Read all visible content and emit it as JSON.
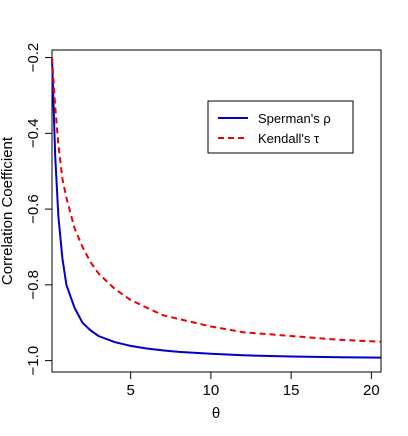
{
  "chart_data": {
    "type": "line",
    "xlabel": "θ",
    "ylabel": "Correlation Coefficient",
    "xlim": [
      0.1,
      20.6
    ],
    "ylim": [
      -1.03,
      -0.18
    ],
    "xticks": [
      5,
      10,
      15,
      20
    ],
    "yticks": [
      -1.0,
      -0.8,
      -0.6,
      -0.4,
      -0.2
    ],
    "ytick_labels": [
      "−1.0",
      "−0.8",
      "−0.6",
      "−0.4",
      "−0.2"
    ],
    "grid": false,
    "legend_position": "top-right",
    "series": [
      {
        "name": "Sperman's ρ",
        "color": "#0000cc",
        "dash": "solid",
        "x": [
          0.1,
          0.3,
          0.5,
          0.75,
          1.0,
          1.5,
          2.0,
          2.5,
          3.0,
          4.0,
          5.0,
          6.0,
          7.0,
          8.0,
          10.0,
          12.0,
          15.0,
          18.0,
          20.6
        ],
        "y": [
          -0.2,
          -0.46,
          -0.62,
          -0.73,
          -0.8,
          -0.86,
          -0.9,
          -0.92,
          -0.935,
          -0.951,
          -0.961,
          -0.968,
          -0.973,
          -0.977,
          -0.982,
          -0.986,
          -0.989,
          -0.991,
          -0.992
        ]
      },
      {
        "name": "Kendall's τ",
        "color": "#ee0000",
        "dash": "dashed",
        "x": [
          0.1,
          0.3,
          0.5,
          0.75,
          1.0,
          1.5,
          2.0,
          2.5,
          3.0,
          4.0,
          5.0,
          6.0,
          7.0,
          8.0,
          10.0,
          12.0,
          15.0,
          18.0,
          20.6
        ],
        "y": [
          -0.2,
          -0.33,
          -0.43,
          -0.52,
          -0.57,
          -0.65,
          -0.7,
          -0.74,
          -0.77,
          -0.81,
          -0.84,
          -0.86,
          -0.88,
          -0.89,
          -0.91,
          -0.925,
          -0.935,
          -0.945,
          -0.95
        ]
      }
    ]
  }
}
